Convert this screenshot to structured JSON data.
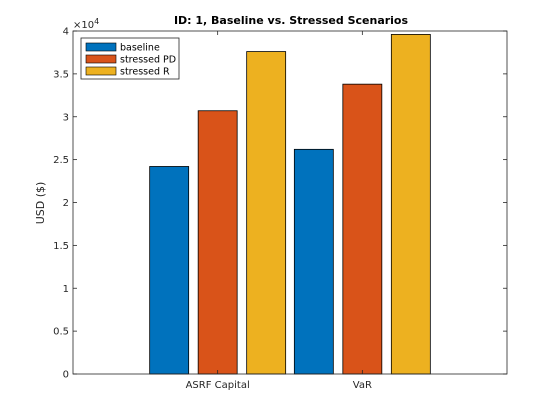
{
  "chart_data": {
    "type": "bar",
    "title": "ID: 1, Baseline vs. Stressed Scenarios",
    "ylabel": "USD ($)",
    "xlabel": "",
    "y_exponent_label": "×10",
    "y_exponent_power": "4",
    "ylim": [
      0,
      40000
    ],
    "y_ticks": [
      0,
      5000,
      10000,
      15000,
      20000,
      25000,
      30000,
      35000,
      40000
    ],
    "y_tick_labels": [
      "0",
      "0.5",
      "1",
      "1.5",
      "2",
      "2.5",
      "3",
      "3.5",
      "4"
    ],
    "categories": [
      "ASRF Capital",
      "VaR"
    ],
    "series": [
      {
        "name": "baseline",
        "color": "#0072BD",
        "values": [
          24200,
          26200
        ]
      },
      {
        "name": "stressed PD",
        "color": "#D95319",
        "values": [
          30700,
          33800
        ]
      },
      {
        "name": "stressed R",
        "color": "#EDB120",
        "values": [
          37600,
          39600
        ]
      }
    ],
    "legend": {
      "position": "top-left"
    },
    "grid": false
  }
}
